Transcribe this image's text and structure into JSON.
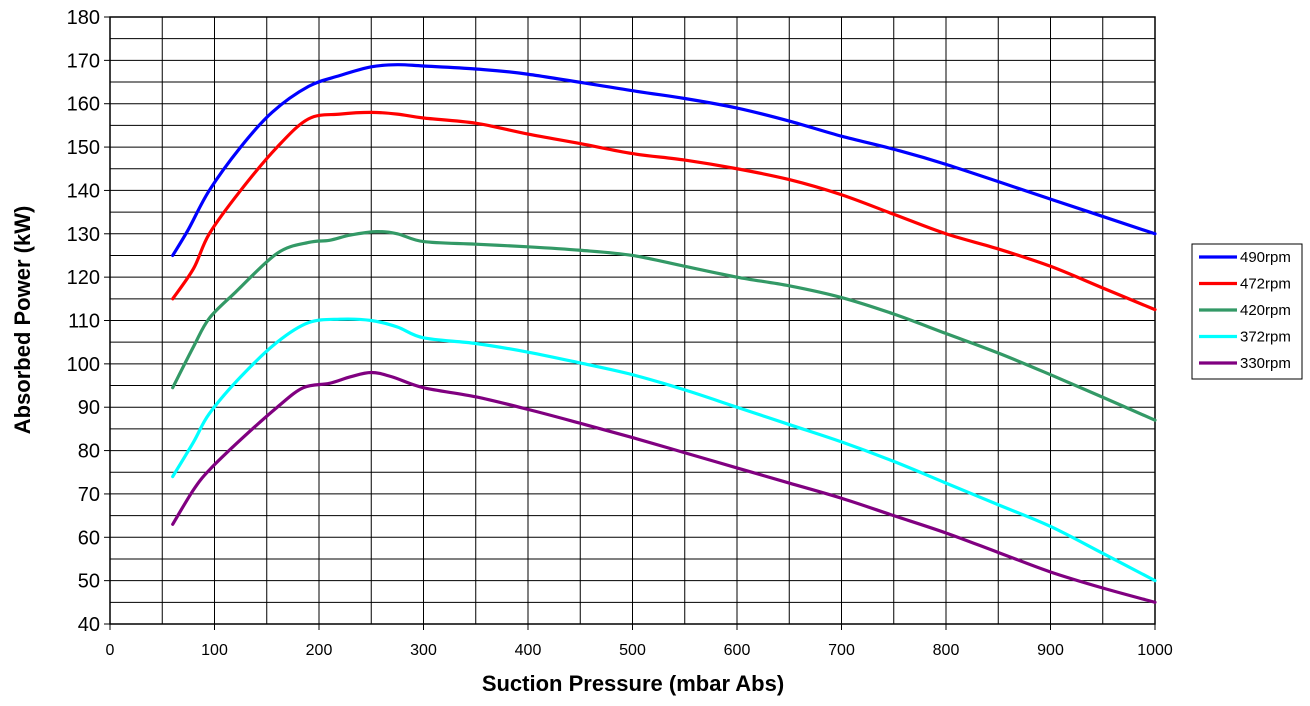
{
  "chart_data": {
    "type": "line",
    "title": "",
    "xlabel": "Suction Pressure (mbar Abs)",
    "ylabel": "Absorbed Power (kW)",
    "xlim": [
      0,
      1000
    ],
    "ylim": [
      40,
      180
    ],
    "x_ticks": [
      "0",
      "100",
      "200",
      "300",
      "400",
      "500",
      "600",
      "700",
      "800",
      "900",
      "1000"
    ],
    "y_ticks": [
      "40",
      "50",
      "60",
      "70",
      "80",
      "90",
      "100",
      "110",
      "120",
      "130",
      "140",
      "150",
      "160",
      "170",
      "180"
    ],
    "grid": true,
    "legend_position": "right",
    "series": [
      {
        "name": "490rpm",
        "color": "#0000ff",
        "points": [
          [
            60,
            125
          ],
          [
            75,
            131
          ],
          [
            95,
            140
          ],
          [
            125,
            150
          ],
          [
            155,
            158
          ],
          [
            190,
            164
          ],
          [
            220,
            166.5
          ],
          [
            250,
            168.5
          ],
          [
            275,
            169
          ],
          [
            300,
            168.7
          ],
          [
            350,
            168
          ],
          [
            400,
            166.8
          ],
          [
            500,
            163
          ],
          [
            550,
            161.2
          ],
          [
            600,
            159
          ],
          [
            650,
            156
          ],
          [
            700,
            152.5
          ],
          [
            750,
            149.5
          ],
          [
            800,
            146
          ],
          [
            900,
            138
          ],
          [
            1000,
            130
          ]
        ]
      },
      {
        "name": "472rpm",
        "color": "#ff0000",
        "points": [
          [
            60,
            115
          ],
          [
            80,
            122
          ],
          [
            95,
            130
          ],
          [
            125,
            140
          ],
          [
            160,
            150
          ],
          [
            190,
            156.5
          ],
          [
            220,
            157.6
          ],
          [
            250,
            158
          ],
          [
            275,
            157.6
          ],
          [
            300,
            156.7
          ],
          [
            350,
            155.5
          ],
          [
            400,
            153
          ],
          [
            450,
            150.8
          ],
          [
            500,
            148.5
          ],
          [
            550,
            147
          ],
          [
            600,
            145
          ],
          [
            650,
            142.5
          ],
          [
            700,
            139
          ],
          [
            750,
            134.5
          ],
          [
            800,
            130
          ],
          [
            850,
            126.5
          ],
          [
            900,
            122.5
          ],
          [
            950,
            117.5
          ],
          [
            1000,
            112.5
          ]
        ]
      },
      {
        "name": "420rpm",
        "color": "#339966",
        "points": [
          [
            60,
            94.5
          ],
          [
            80,
            104
          ],
          [
            95,
            110.5
          ],
          [
            120,
            116.5
          ],
          [
            160,
            125.5
          ],
          [
            190,
            128
          ],
          [
            210,
            128.5
          ],
          [
            230,
            129.7
          ],
          [
            255,
            130.5
          ],
          [
            275,
            130
          ],
          [
            300,
            128.2
          ],
          [
            350,
            127.6
          ],
          [
            400,
            127
          ],
          [
            450,
            126.2
          ],
          [
            500,
            125
          ],
          [
            550,
            122.5
          ],
          [
            600,
            120
          ],
          [
            650,
            118
          ],
          [
            700,
            115.3
          ],
          [
            750,
            111.5
          ],
          [
            800,
            107
          ],
          [
            850,
            102.5
          ],
          [
            900,
            97.5
          ],
          [
            950,
            92.3
          ],
          [
            1000,
            87
          ]
        ]
      },
      {
        "name": "372rpm",
        "color": "#00ffff",
        "points": [
          [
            60,
            74
          ],
          [
            80,
            82
          ],
          [
            95,
            88.5
          ],
          [
            125,
            97
          ],
          [
            160,
            105
          ],
          [
            190,
            109.5
          ],
          [
            220,
            110.3
          ],
          [
            250,
            110
          ],
          [
            275,
            108.5
          ],
          [
            300,
            106
          ],
          [
            350,
            104.7
          ],
          [
            400,
            102.7
          ],
          [
            450,
            100.2
          ],
          [
            500,
            97.5
          ],
          [
            550,
            94
          ],
          [
            600,
            90
          ],
          [
            650,
            86
          ],
          [
            700,
            82
          ],
          [
            750,
            77.5
          ],
          [
            800,
            72.5
          ],
          [
            850,
            67.5
          ],
          [
            900,
            62.5
          ],
          [
            950,
            56.3
          ],
          [
            1000,
            50
          ]
        ]
      },
      {
        "name": "330rpm",
        "color": "#800080",
        "points": [
          [
            60,
            63
          ],
          [
            80,
            71
          ],
          [
            95,
            75.5
          ],
          [
            125,
            82.5
          ],
          [
            160,
            90
          ],
          [
            185,
            94.5
          ],
          [
            210,
            95.5
          ],
          [
            230,
            97
          ],
          [
            250,
            98
          ],
          [
            270,
            97
          ],
          [
            300,
            94.5
          ],
          [
            350,
            92.4
          ],
          [
            400,
            89.5
          ],
          [
            450,
            86.3
          ],
          [
            500,
            83
          ],
          [
            550,
            79.5
          ],
          [
            600,
            76
          ],
          [
            650,
            72.5
          ],
          [
            700,
            69
          ],
          [
            750,
            65
          ],
          [
            800,
            61
          ],
          [
            850,
            56.5
          ],
          [
            900,
            52
          ],
          [
            950,
            48.3
          ],
          [
            1000,
            45
          ]
        ]
      }
    ]
  }
}
